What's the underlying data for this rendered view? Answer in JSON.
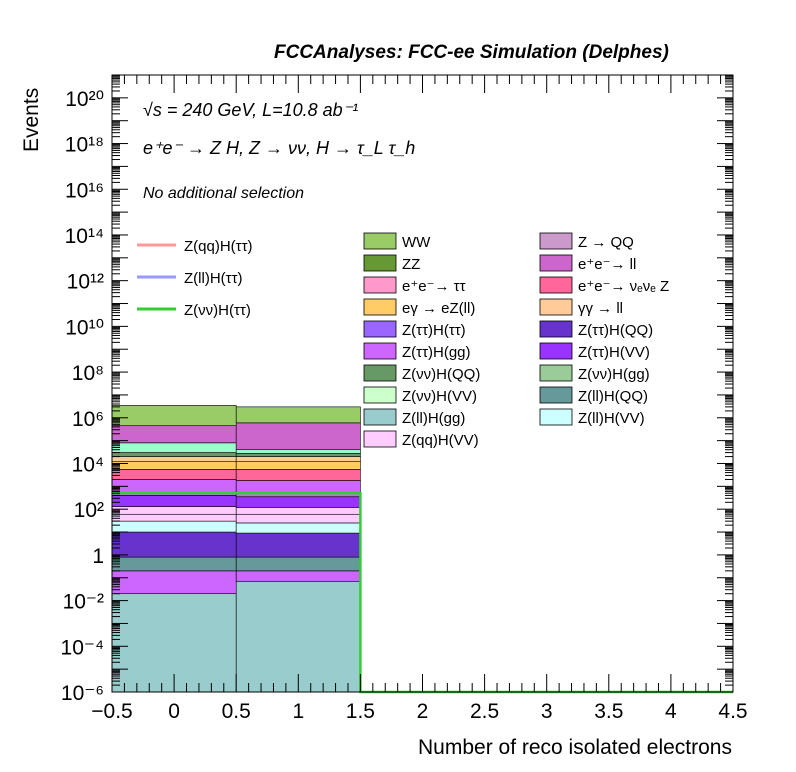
{
  "header": "FCCAnalyses: FCC-ee Simulation (Delphes)",
  "annotations": {
    "energy_lumi": "√s = 240 GeV, L=10.8 ab⁻¹",
    "process": "e⁺e⁻ → Z H, Z → νν, H → τ_L τ_h",
    "selection": "No additional selection"
  },
  "chart_data": {
    "type": "bar",
    "subtype": "stacked-histogram-with-signal-lines",
    "xlabel": "Number of reco isolated electrons",
    "ylabel": "Events",
    "xlim": [
      -0.5,
      4.5
    ],
    "ylim": [
      1e-06,
      1e+21
    ],
    "yscale": "log",
    "x_ticks": [
      "−0.5",
      "0",
      "0.5",
      "1",
      "1.5",
      "2",
      "2.5",
      "3",
      "3.5",
      "4",
      "4.5"
    ],
    "y_ticks": [
      "10⁻⁶",
      "10⁻⁴",
      "10⁻²",
      "1",
      "10²",
      "10⁴",
      "10⁶",
      "10⁸",
      "10¹⁰",
      "10¹²",
      "10¹⁴",
      "10¹⁶",
      "10¹⁸",
      "10²⁰"
    ],
    "bin_edges": [
      -0.5,
      0.5,
      1.5,
      2.5,
      3.5,
      4.5
    ],
    "stack_edges_bottom_to_top": [
      [
        1e-06,
        1e-06,
        1e-06,
        1e-06,
        1e-06
      ],
      [
        0.02,
        0.07,
        1e-06,
        1e-06,
        1e-06
      ],
      [
        0.2,
        0.2,
        1e-06,
        1e-06,
        1e-06
      ],
      [
        0.8,
        0.8,
        1e-06,
        1e-06,
        1e-06
      ],
      [
        10,
        9,
        1e-06,
        1e-06,
        1e-06
      ],
      [
        30,
        25,
        1e-06,
        1e-06,
        1e-06
      ],
      [
        60,
        60,
        1e-06,
        1e-06,
        1e-06
      ],
      [
        130,
        120,
        1e-06,
        1e-06,
        1e-06
      ],
      [
        400,
        350,
        1e-06,
        1e-06,
        1e-06
      ],
      [
        2000,
        1800,
        1e-06,
        1e-06,
        1e-06
      ],
      [
        5500,
        5500,
        1e-06,
        1e-06,
        1e-06
      ],
      [
        12000,
        12000,
        1e-06,
        1e-06,
        1e-06
      ],
      [
        20000,
        20000,
        1e-06,
        1e-06,
        1e-06
      ],
      [
        30000,
        28000,
        1e-06,
        1e-06,
        1e-06
      ],
      [
        80000,
        40000,
        1e-06,
        1e-06,
        1e-06
      ],
      [
        450000,
        600000,
        1e-06,
        1e-06,
        1e-06
      ],
      [
        3500000,
        3000000,
        1e-06,
        1e-06,
        1e-06
      ]
    ],
    "stack_fills_bottom_to_top": [
      "#99cccc",
      "#cc66ff",
      "#669999",
      "#6633cc",
      "#ccffff",
      "#ffccff",
      "#ffccff",
      "#9933ff",
      "#cc66ff",
      "#ff6699",
      "#ffcc66",
      "#ffcc99",
      "#669966",
      "#99ffcc",
      "#cc66cc",
      "#99cc66",
      "#ff99cc"
    ],
    "signal_lines": [
      {
        "name": "Z(νν)H(ττ)",
        "color": "#33cc33",
        "values": [
          500,
          500,
          1e-06,
          1e-06,
          1e-06
        ]
      }
    ],
    "legend_lines": [
      {
        "label": "Z(qq)H(ττ)",
        "color": "#ff9999"
      },
      {
        "label": "Z(ll)H(ττ)",
        "color": "#9999ff"
      },
      {
        "label": "Z(νν)H(ττ)",
        "color": "#33cc33"
      }
    ],
    "legend_boxes": [
      {
        "label": "WW",
        "color": "#99cc66"
      },
      {
        "label": "Z → QQ",
        "color": "#cc99cc"
      },
      {
        "label": "ZZ",
        "color": "#669933"
      },
      {
        "label": "e⁺e⁻→ ll",
        "color": "#cc66cc"
      },
      {
        "label": "e⁺e⁻→ ττ",
        "color": "#ff99cc"
      },
      {
        "label": "e⁺e⁻→ νₑνₑ Z",
        "color": "#ff6699"
      },
      {
        "label": "eγ → eZ(ll)",
        "color": "#ffcc66"
      },
      {
        "label": "γγ → ll",
        "color": "#ffcc99"
      },
      {
        "label": "Z(ττ)H(ττ)",
        "color": "#9966ff"
      },
      {
        "label": "Z(ττ)H(QQ)",
        "color": "#6633cc"
      },
      {
        "label": "Z(ττ)H(gg)",
        "color": "#cc66ff"
      },
      {
        "label": "Z(ττ)H(VV)",
        "color": "#9933ff"
      },
      {
        "label": "Z(νν)H(QQ)",
        "color": "#669966"
      },
      {
        "label": "Z(νν)H(gg)",
        "color": "#99cc99"
      },
      {
        "label": "Z(νν)H(VV)",
        "color": "#ccffcc"
      },
      {
        "label": "Z(ll)H(QQ)",
        "color": "#669999"
      },
      {
        "label": "Z(ll)H(gg)",
        "color": "#99cccc"
      },
      {
        "label": "Z(ll)H(VV)",
        "color": "#ccffff"
      },
      {
        "label": "Z(qq)H(VV)",
        "color": "#ffccff"
      }
    ]
  }
}
